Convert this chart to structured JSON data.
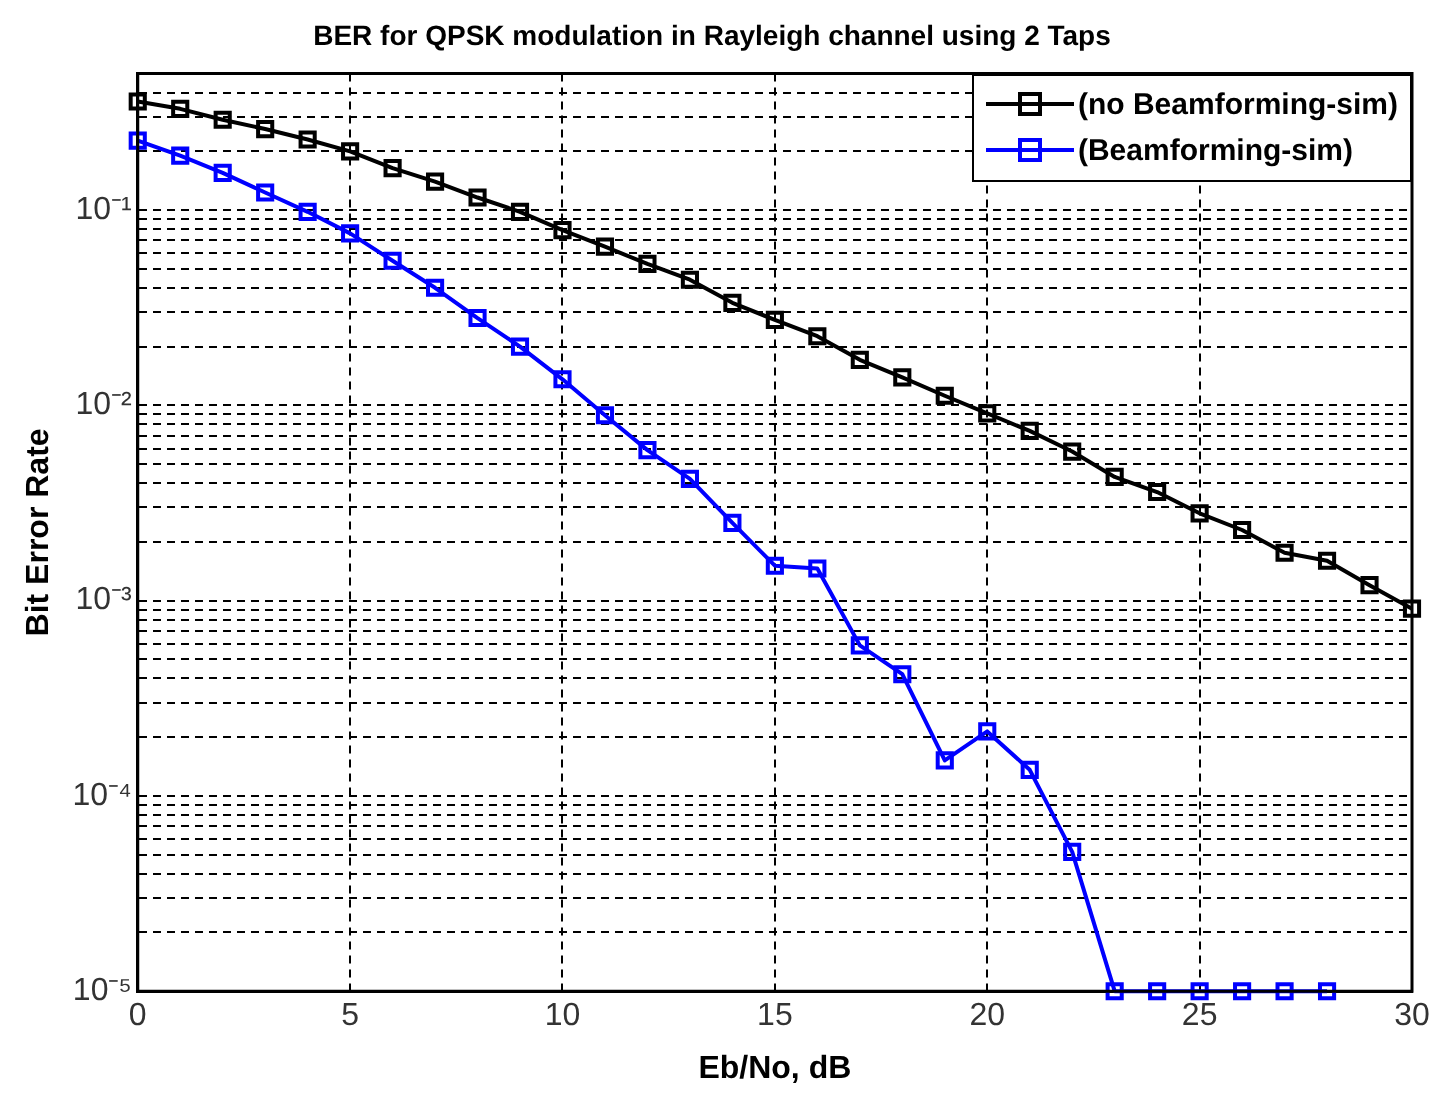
{
  "chart_data": {
    "type": "line",
    "title": "BER for QPSK modulation in Rayleigh channel using 2 Taps",
    "xlabel": "Eb/No, dB",
    "ylabel": "Bit Error Rate",
    "x": [
      0,
      1,
      2,
      3,
      4,
      5,
      6,
      7,
      8,
      9,
      10,
      11,
      12,
      13,
      14,
      15,
      16,
      17,
      18,
      19,
      20,
      21,
      22,
      23,
      24,
      25,
      26,
      27,
      28,
      29,
      30
    ],
    "series": [
      {
        "name": "(no Beamforming-sim)",
        "color": "#000000",
        "values": [
          0.36,
          0.33,
          0.29,
          0.26,
          0.23,
          0.2,
          0.164,
          0.14,
          0.116,
          0.098,
          0.079,
          0.065,
          0.053,
          0.044,
          0.0335,
          0.0274,
          0.0226,
          0.0171,
          0.0139,
          0.0112,
          0.0091,
          0.0074,
          0.0058,
          0.0043,
          0.0036,
          0.0028,
          0.0023,
          0.00176,
          0.0016,
          0.0012,
          0.00091
        ]
      },
      {
        "name": "(Beamforming-sim)",
        "color": "#0000ff",
        "values": [
          0.227,
          0.19,
          0.155,
          0.123,
          0.098,
          0.076,
          0.055,
          0.04,
          0.028,
          0.02,
          0.0136,
          0.0089,
          0.0059,
          0.0042,
          0.0025,
          0.00151,
          0.00146,
          0.00059,
          0.00042,
          0.000152,
          0.000214,
          0.000136,
          5.17e-05,
          1e-05,
          1e-05,
          1e-05,
          1e-05,
          1e-05,
          1e-05,
          null,
          null
        ]
      }
    ],
    "log": "y",
    "xlim": [
      0,
      30
    ],
    "xticks": [
      0,
      5,
      10,
      15,
      20,
      25,
      30
    ],
    "ylim": [
      1e-05,
      0.5
    ],
    "yticks": [
      {
        "value": 1e-05,
        "label": "10⁻⁵"
      },
      {
        "value": 2e-05,
        "label": null
      },
      {
        "value": 3e-05,
        "label": null
      },
      {
        "value": 4e-05,
        "label": null
      },
      {
        "value": 5e-05,
        "label": null
      },
      {
        "value": 6e-05,
        "label": null
      },
      {
        "value": 7e-05,
        "label": null
      },
      {
        "value": 8e-05,
        "label": null
      },
      {
        "value": 9e-05,
        "label": null
      },
      {
        "value": 0.0001,
        "label": "10⁻⁴"
      },
      {
        "value": 0.0002,
        "label": null
      },
      {
        "value": 0.0003,
        "label": null
      },
      {
        "value": 0.0004,
        "label": null
      },
      {
        "value": 0.0005,
        "label": null
      },
      {
        "value": 0.0006,
        "label": null
      },
      {
        "value": 0.0007,
        "label": null
      },
      {
        "value": 0.0008,
        "label": null
      },
      {
        "value": 0.0009,
        "label": null
      },
      {
        "value": 0.001,
        "label": "10⁻³"
      },
      {
        "value": 0.002,
        "label": null
      },
      {
        "value": 0.003,
        "label": null
      },
      {
        "value": 0.004,
        "label": null
      },
      {
        "value": 0.005,
        "label": null
      },
      {
        "value": 0.006,
        "label": null
      },
      {
        "value": 0.007,
        "label": null
      },
      {
        "value": 0.008,
        "label": null
      },
      {
        "value": 0.009,
        "label": null
      },
      {
        "value": 0.01,
        "label": "10⁻²"
      },
      {
        "value": 0.02,
        "label": null
      },
      {
        "value": 0.03,
        "label": null
      },
      {
        "value": 0.04,
        "label": null
      },
      {
        "value": 0.05,
        "label": null
      },
      {
        "value": 0.06,
        "label": null
      },
      {
        "value": 0.07,
        "label": null
      },
      {
        "value": 0.08,
        "label": null
      },
      {
        "value": 0.09,
        "label": null
      },
      {
        "value": 0.1,
        "label": "10⁻¹"
      },
      {
        "value": 0.2,
        "label": null
      },
      {
        "value": 0.3,
        "label": null
      },
      {
        "value": 0.4,
        "label": null
      }
    ],
    "grid": true,
    "legend": "top right",
    "marker": "square",
    "line_style": "solid"
  }
}
